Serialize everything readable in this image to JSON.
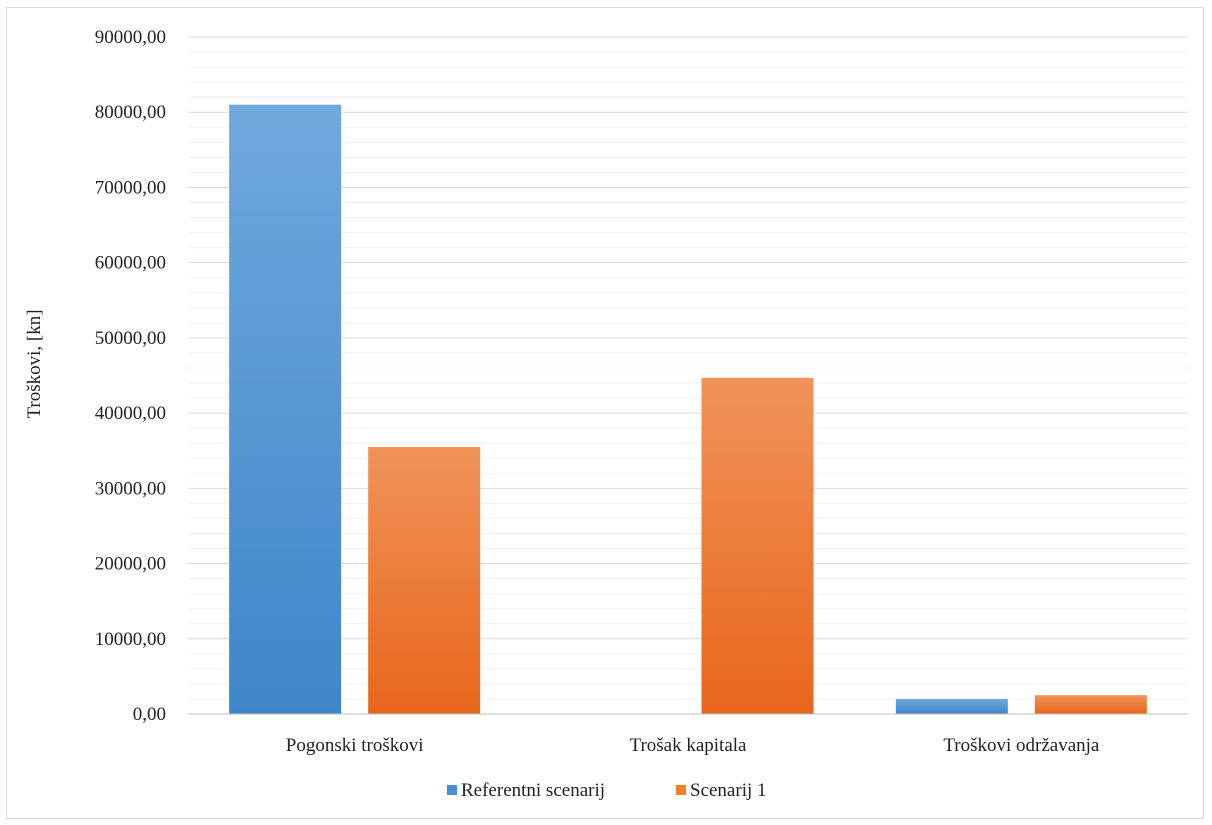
{
  "chart_data": {
    "type": "bar",
    "title": "",
    "xlabel": "",
    "ylabel": "Troškovi, [kn]",
    "categories": [
      "Pogonski troškovi",
      "Trošak kapitala",
      "Troškovi održavanja"
    ],
    "series": [
      {
        "name": "Referentni scenarij",
        "values": [
          81000,
          0,
          2000
        ],
        "color": "#4a8fd4"
      },
      {
        "name": "Scenarij 1",
        "values": [
          35500,
          44700,
          2500
        ],
        "color": "#f07e2a"
      }
    ],
    "ylim": [
      0,
      90000
    ],
    "yticks": [
      "0,00",
      "10000,00",
      "20000,00",
      "30000,00",
      "40000,00",
      "50000,00",
      "60000,00",
      "70000,00",
      "80000,00",
      "90000,00"
    ],
    "major_step": 10000,
    "minor_step": 2000,
    "grid": true,
    "legend_position": "bottom"
  }
}
